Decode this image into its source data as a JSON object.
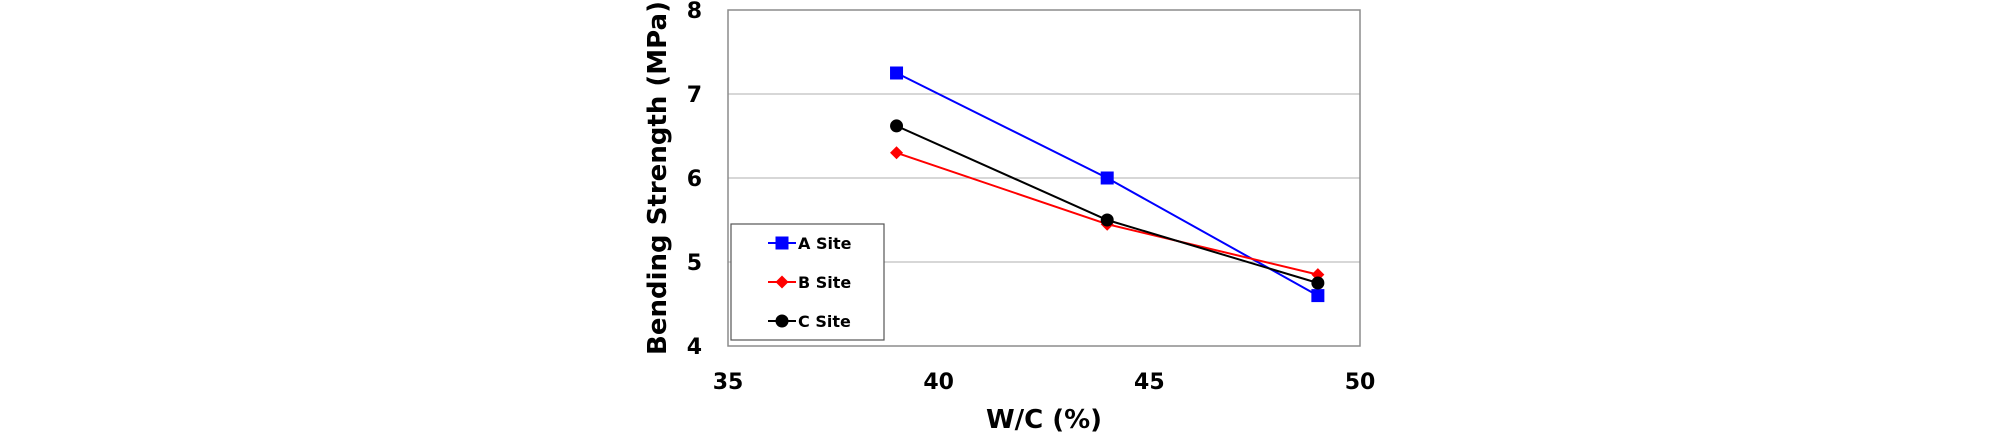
{
  "chart_data": {
    "type": "line",
    "title": "",
    "xlabel": "W/C (%)",
    "ylabel": "Bending Strength (MPa)",
    "xlim": [
      35,
      50
    ],
    "ylim": [
      4,
      8
    ],
    "x_ticks": [
      35,
      40,
      45,
      50
    ],
    "y_ticks": [
      4,
      5,
      6,
      7,
      8
    ],
    "grid": "horizontal",
    "legend_position": "bottom-left",
    "x": [
      39,
      44,
      49
    ],
    "series": [
      {
        "name": "A Site",
        "values": [
          7.25,
          6.0,
          4.6
        ],
        "color": "#0000ff",
        "marker": "square"
      },
      {
        "name": "B Site",
        "values": [
          6.3,
          5.45,
          4.85
        ],
        "color": "#ff0000",
        "marker": "diamond"
      },
      {
        "name": "C Site",
        "values": [
          6.62,
          5.5,
          4.75
        ],
        "color": "#000000",
        "marker": "circle"
      }
    ]
  }
}
